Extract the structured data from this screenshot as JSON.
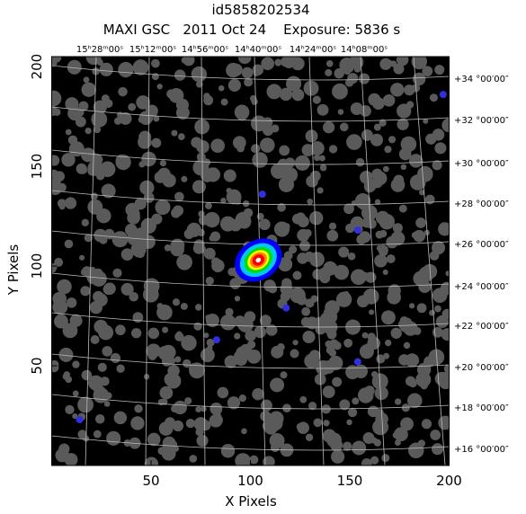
{
  "chart_data": {
    "type": "image",
    "title": "id5858202534",
    "subtitle": "MAXI GSC   2011 Oct 24    Exposure: 5836 s",
    "x_label": "X Pixels",
    "y_label": "Y Pixels",
    "xlim": [
      0,
      200
    ],
    "ylim": [
      0,
      205
    ],
    "xticks": [
      50,
      100,
      150,
      200
    ],
    "yticks": [
      50,
      100,
      150,
      200
    ],
    "top_axis_labels": [
      "15ʰ28ᵐ00ˢ",
      "15ʰ12ᵐ00ˢ",
      "14ʰ56ᵐ00ˢ",
      "14ʰ40ᵐ00ˢ",
      "14ʰ24ᵐ00ˢ",
      "14ʰ08ᵐ00ˢ"
    ],
    "right_axis_labels": [
      "+34 °00′00″",
      "+32 °00′00″",
      "+30 °00′00″",
      "+28 °00′00″",
      "+26 °00′00″",
      "+24 °00′00″",
      "+22 °00′00″",
      "+20 °00′00″",
      "+18 °00′00″",
      "+16 °00′00″"
    ],
    "sources": {
      "x": [
        104,
        106,
        154,
        118,
        154,
        14,
        83,
        197
      ],
      "y": [
        103,
        136,
        118,
        79,
        52,
        23,
        63,
        186
      ]
    }
  }
}
